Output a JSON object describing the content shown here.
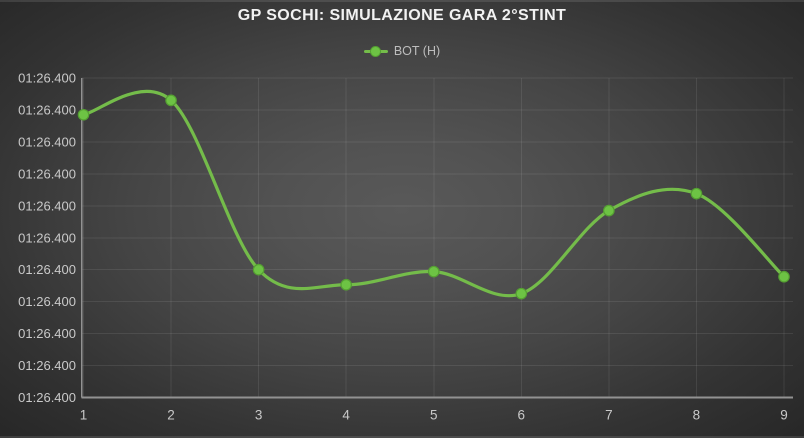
{
  "colors": {
    "background_center": "#595959",
    "background_edge": "#272727",
    "line_green": "#74bc4a",
    "marker_fill": "#6dc344",
    "marker_stroke": "#55a032",
    "axis_line": "#929292",
    "gridline": "rgba(255,255,255,0.085)",
    "tick_text": "#c9c9c9",
    "title_text": "#f2f2f2",
    "legend_text": "#bdbdbd"
  },
  "chart_data": {
    "type": "line",
    "title": "GP SOCHI: SIMULAZIONE GARA 2°STINT",
    "smooth": true,
    "marker": "circle",
    "grid": true,
    "legend_position": "top-center",
    "xlabel": "",
    "ylabel": "",
    "categories": [
      "1",
      "2",
      "3",
      "4",
      "5",
      "6",
      "7",
      "8",
      "9"
    ],
    "series": [
      {
        "name": "BOT (H)",
        "values_gridline_units": [
          8.85,
          9.3,
          4.0,
          3.53,
          3.94,
          3.25,
          5.85,
          6.38,
          3.78
        ]
      }
    ],
    "y_axis": {
      "tick_labels": [
        "01:26.400",
        "01:26.400",
        "01:26.400",
        "01:26.400",
        "01:26.400",
        "01:26.400",
        "01:26.400",
        "01:26.400",
        "01:26.400",
        "01:26.400",
        "01:26.400"
      ],
      "range_gridline_units": [
        0,
        10
      ],
      "note_all_ticks_identical": true
    }
  }
}
